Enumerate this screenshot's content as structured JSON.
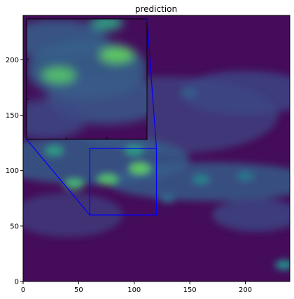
{
  "chart_data": {
    "type": "heatmap",
    "title": "prediction",
    "xlabel": "",
    "ylabel": "",
    "xlim": [
      0,
      240
    ],
    "ylim": [
      0,
      240
    ],
    "x_ticks": [
      0,
      50,
      100,
      150,
      200
    ],
    "y_ticks": [
      0,
      50,
      100,
      150,
      200
    ],
    "colormap": "viridis",
    "grid": false,
    "zoom_region": {
      "x": [
        60,
        120
      ],
      "y": [
        60,
        120
      ]
    },
    "inset_zoom": true,
    "colors": {
      "background": "#440c5a",
      "frame": "#0000ff",
      "inset_border": "#000000"
    },
    "features": [
      {
        "name": "green-cell",
        "x": 105,
        "y": 102,
        "value": 0.75
      },
      {
        "name": "green-cell",
        "x": 76,
        "y": 92,
        "value": 0.7
      },
      {
        "name": "green-cell",
        "x": 46,
        "y": 88,
        "value": 0.65
      },
      {
        "name": "green-cell",
        "x": 28,
        "y": 118,
        "value": 0.55
      },
      {
        "name": "green-cell",
        "x": 100,
        "y": 118,
        "value": 0.55
      },
      {
        "name": "teal-band",
        "x": 160,
        "y": 92,
        "value": 0.45
      },
      {
        "name": "teal-band",
        "x": 200,
        "y": 95,
        "value": 0.4
      },
      {
        "name": "teal-band",
        "x": 150,
        "y": 170,
        "value": 0.3
      },
      {
        "name": "teal-band",
        "x": 130,
        "y": 75,
        "value": 0.35
      },
      {
        "name": "teal-spot",
        "x": 235,
        "y": 15,
        "value": 0.5
      }
    ]
  }
}
